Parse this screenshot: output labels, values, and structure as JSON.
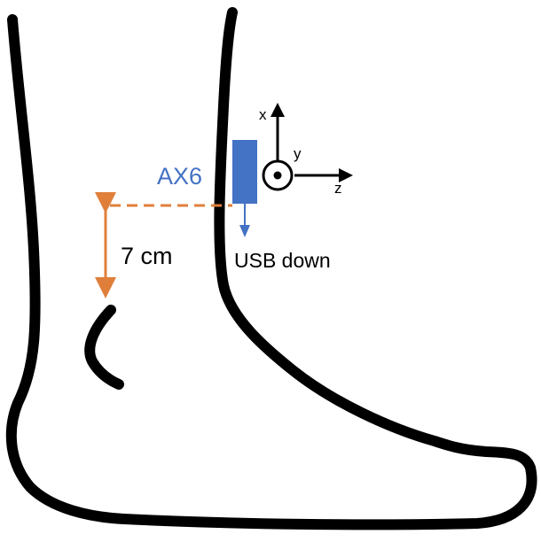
{
  "labels": {
    "sensor": "AX6",
    "distance": "7 cm",
    "orientation": "USB down",
    "axis_x": "x",
    "axis_y": "y",
    "axis_z": "z"
  },
  "colors": {
    "outline": "#000000",
    "sensor": "#4472c4",
    "measurement": "#e07f3a",
    "background": "#ffffff"
  }
}
